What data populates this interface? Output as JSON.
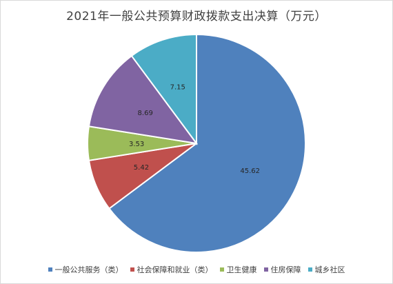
{
  "chart_data": {
    "type": "pie",
    "title": "2021年一般公共预算财政拨款支出决算（万元）",
    "categories": [
      "一般公共服务（类）",
      "社会保障和就业（类）",
      "卫生健康",
      "住房保障",
      "城乡社区"
    ],
    "values": [
      45.62,
      5.42,
      3.53,
      8.69,
      7.15
    ],
    "colors": [
      "#4f81bd",
      "#c0504d",
      "#9bbb59",
      "#8064a2",
      "#4bacc6"
    ],
    "start_angle": 0,
    "direction": "clockwise",
    "legend_position": "bottom"
  }
}
